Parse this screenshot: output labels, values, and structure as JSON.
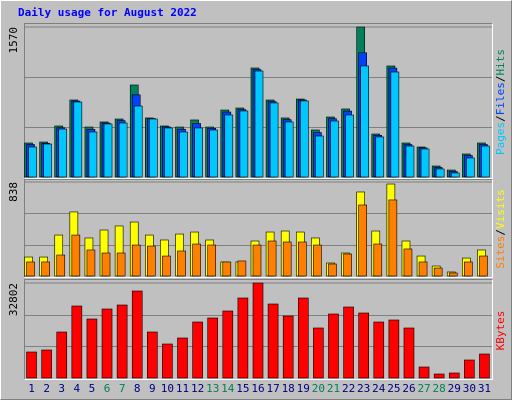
{
  "chart_data": [
    {
      "type": "bar",
      "title": "Daily usage for August 2022",
      "ylim": [
        0,
        1570
      ],
      "yticks": [
        1570
      ],
      "grid": true,
      "legend_position": "right",
      "legend_separator": "/",
      "series": [
        {
          "name": "Hits",
          "color": "#00805c",
          "values": [
            356,
            366,
            534,
            806,
            523,
            576,
            607,
            963,
            618,
            534,
            523,
            597,
            523,
            701,
            722,
            1141,
            806,
            618,
            816,
            492,
            628,
            712,
            1570,
            450,
            1162,
            356,
            314,
            115,
            73,
            241,
            356
          ]
        },
        {
          "name": "Files",
          "color": "#0040ff",
          "values": [
            340,
            352,
            515,
            795,
            498,
            565,
            590,
            860,
            612,
            524,
            500,
            560,
            510,
            680,
            705,
            1125,
            790,
            600,
            806,
            465,
            610,
            690,
            1300,
            436,
            1140,
            340,
            305,
            100,
            58,
            225,
            340
          ]
        },
        {
          "name": "Pages",
          "color": "#00c8ff",
          "values": [
            314,
            345,
            502,
            785,
            471,
            555,
            565,
            743,
            607,
            513,
            471,
            513,
            492,
            649,
            691,
            1109,
            775,
            576,
            796,
            429,
            586,
            649,
            1162,
            419,
            1099,
            324,
            293,
            84,
            42,
            199,
            324
          ]
        }
      ]
    },
    {
      "type": "bar",
      "ylim": [
        0,
        838
      ],
      "yticks": [
        838
      ],
      "grid": true,
      "legend_position": "right",
      "series": [
        {
          "name": "Visits",
          "color": "#ffff00",
          "values": [
            169,
            169,
            365,
            571,
            339,
            410,
            446,
            481,
            365,
            321,
            374,
            392,
            321,
            125,
            125,
            312,
            392,
            401,
            392,
            339,
            116,
            205,
            749,
            401,
            820,
            312,
            178,
            89,
            36,
            160,
            232
          ]
        },
        {
          "name": "Sites",
          "color": "#ff8000",
          "values": [
            125,
            125,
            187,
            365,
            232,
            205,
            205,
            276,
            267,
            178,
            223,
            285,
            276,
            125,
            134,
            276,
            312,
            303,
            303,
            276,
            107,
            196,
            633,
            285,
            678,
            241,
            125,
            71,
            27,
            125,
            178
          ]
        }
      ]
    },
    {
      "type": "bar",
      "ylim": [
        0,
        32802
      ],
      "yticks": [
        32802
      ],
      "grid": true,
      "legend_position": "right",
      "categories": [
        "1",
        "2",
        "3",
        "4",
        "5",
        "6",
        "7",
        "8",
        "9",
        "10",
        "11",
        "12",
        "13",
        "14",
        "15",
        "16",
        "17",
        "18",
        "19",
        "20",
        "21",
        "22",
        "23",
        "24",
        "25",
        "26",
        "27",
        "28",
        "29",
        "30",
        "31"
      ],
      "category_colors": [
        "#000080",
        "#000080",
        "#000080",
        "#000080",
        "#000080",
        "#00805c",
        "#00805c",
        "#000080",
        "#000080",
        "#000080",
        "#000080",
        "#000080",
        "#00805c",
        "#00805c",
        "#000080",
        "#000080",
        "#000080",
        "#000080",
        "#000080",
        "#00805c",
        "#00805c",
        "#000080",
        "#000080",
        "#000080",
        "#000080",
        "#000080",
        "#00805c",
        "#00805c",
        "#000080",
        "#000080",
        "#000080"
      ],
      "series": [
        {
          "name": "KBytes",
          "color": "#ff0000",
          "values": [
            8977,
            9668,
            15883,
            24861,
            20372,
            23825,
            25206,
            30040,
            15883,
            11740,
            13811,
            19336,
            20717,
            23134,
            27623,
            32802,
            25552,
            21408,
            27623,
            17264,
            22098,
            24516,
            22443,
            19336,
            20027,
            17264,
            3798,
            1381,
            1726,
            6215,
            8286
          ]
        }
      ]
    }
  ]
}
